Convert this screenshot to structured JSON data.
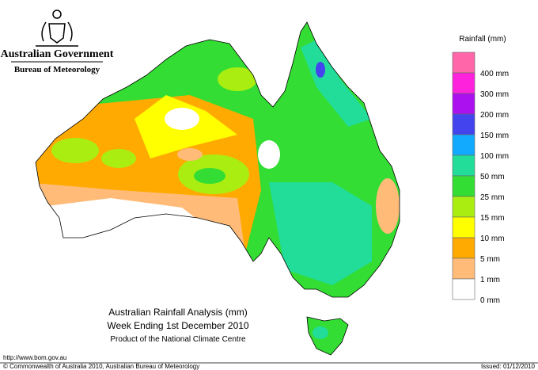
{
  "header": {
    "agency": "Australian Government",
    "bureau": "Bureau of Meteorology"
  },
  "legend": {
    "title": "Rainfall (mm)",
    "labels": [
      "400 mm",
      "300 mm",
      "200 mm",
      "150 mm",
      "100 mm",
      "50 mm",
      "25 mm",
      "15 mm",
      "10 mm",
      "5 mm",
      "1 mm",
      "0 mm"
    ],
    "colors": [
      "#ff66aa",
      "#ff22dd",
      "#aa11ee",
      "#4444ee",
      "#11aaff",
      "#22dd99",
      "#33dd33",
      "#aaee11",
      "#ffff00",
      "#ffaa00",
      "#ffbb77",
      "#ffffff"
    ]
  },
  "caption": {
    "title": "Australian Rainfall Analysis (mm)",
    "period": "Week Ending 1st December 2010",
    "product": "Product of the National Climate Centre"
  },
  "footer": {
    "url": "http://www.bom.gov.au",
    "copyright": "© Commonwealth of Australia 2010, Australian Bureau of Meteorology",
    "issued": "Issued: 01/12/2010"
  }
}
